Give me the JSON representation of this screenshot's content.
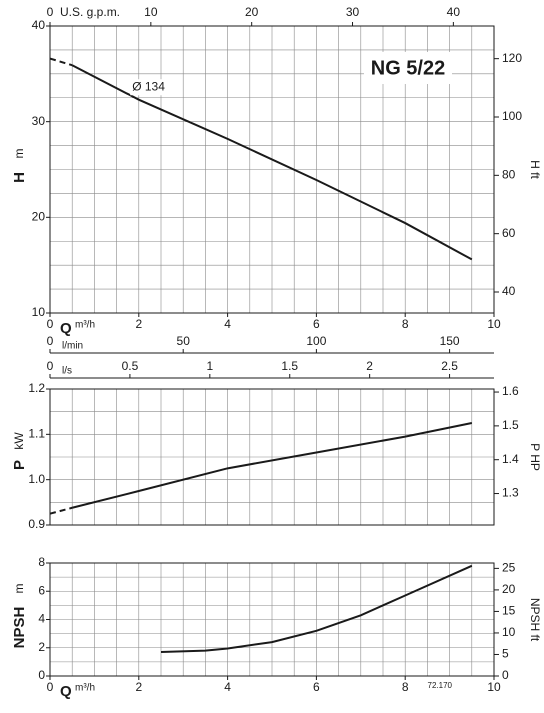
{
  "chart_data": [
    {
      "type": "line",
      "title": "NG 5/22",
      "y_label": "H",
      "y_unit": "m",
      "y2_label": "H ft",
      "x_label": "Q",
      "x_unit": "m³/h",
      "x": [
        0,
        0.5,
        2,
        4,
        6,
        8,
        9.5
      ],
      "series": [
        {
          "color": "#1a1a1a",
          "line_style": "dashed",
          "values": [
            36.6,
            35.9,
            null,
            null,
            null,
            null,
            null
          ]
        },
        {
          "name": "Ø 134",
          "color": "#1a1a1a",
          "line_style": "solid",
          "values": [
            null,
            35.9,
            32.3,
            28.2,
            23.9,
            19.4,
            15.6
          ]
        }
      ],
      "xlim": [
        0,
        10
      ],
      "xticks": [
        0,
        2,
        4,
        6,
        8,
        10
      ],
      "ylim": [
        10,
        40
      ],
      "yticks": [
        10,
        20,
        30,
        40
      ],
      "y2lim": [
        32.8,
        131.2
      ],
      "y2ticks": [
        40,
        60,
        80,
        100,
        120
      ],
      "grid": {
        "x_step": 0.5,
        "y_step": 2.5
      },
      "top_axis": {
        "label": "U.S. g.p.m.",
        "lim": [
          0,
          44.03
        ],
        "ticks": [
          0,
          10,
          20,
          30,
          40
        ]
      },
      "extra_x_axes": [
        {
          "label": "l/min",
          "lim": [
            0,
            166.67
          ],
          "ticks": [
            0,
            50,
            100,
            150
          ]
        },
        {
          "label": "l/s",
          "lim": [
            0,
            2.778
          ],
          "ticks": [
            0,
            0.5,
            1,
            1.5,
            2,
            2.5
          ]
        }
      ]
    },
    {
      "type": "line",
      "y_label": "P",
      "y_unit": "kW",
      "y2_label": "P HP",
      "x": [
        0,
        0.5,
        2,
        4,
        6,
        8,
        9.5
      ],
      "series": [
        {
          "color": "#1a1a1a",
          "line_style": "dashed",
          "values": [
            0.925,
            0.938,
            null,
            null,
            null,
            null,
            null
          ]
        },
        {
          "color": "#1a1a1a",
          "line_style": "solid",
          "values": [
            null,
            0.938,
            0.975,
            1.025,
            1.06,
            1.095,
            1.125
          ]
        }
      ],
      "xlim": [
        0,
        10
      ],
      "ylim": [
        0.9,
        1.2
      ],
      "yticks": [
        0.9,
        {
          "value": 1,
          "label": "1.0"
        },
        1.1,
        1.2
      ],
      "y2lim": [
        1.207,
        1.609
      ],
      "y2ticks": [
        1.3,
        1.4,
        1.5,
        1.6
      ],
      "grid": {
        "x_step": 0.5,
        "y_step": 0.05
      }
    },
    {
      "type": "line",
      "y_label": "NPSH",
      "y_unit": "m",
      "y2_label": "NPSH ft",
      "x_label": "Q",
      "x_unit": "m³/h",
      "footnote": "72.170",
      "x": [
        2.5,
        3.5,
        4,
        5,
        6,
        7,
        8,
        9.5
      ],
      "series": [
        {
          "color": "#1a1a1a",
          "line_style": "solid",
          "values": [
            1.7,
            1.8,
            1.95,
            2.4,
            3.2,
            4.3,
            5.7,
            7.8
          ]
        }
      ],
      "xlim": [
        0,
        10
      ],
      "xticks": [
        0,
        2,
        4,
        6,
        8,
        10
      ],
      "ylim": [
        0,
        8
      ],
      "yticks": [
        0,
        2,
        4,
        6,
        8
      ],
      "y2lim": [
        0,
        26.25
      ],
      "y2ticks": [
        0,
        5,
        10,
        15,
        20,
        25
      ],
      "grid": {
        "x_step": 0.5,
        "y_step": 1
      }
    }
  ]
}
